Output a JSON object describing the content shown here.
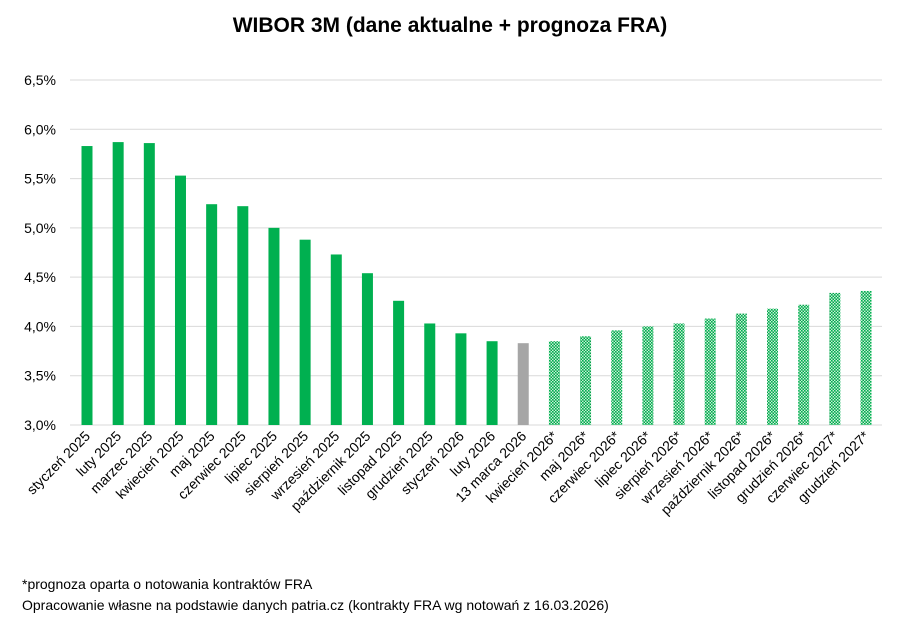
{
  "chart_data": {
    "type": "bar",
    "title": "WIBOR 3M (dane aktualne + prognoza FRA)",
    "xlabel": "",
    "ylabel": "",
    "ylim": [
      3.0,
      6.5
    ],
    "yticks": [
      "3,0%",
      "3,5%",
      "4,0%",
      "4,5%",
      "5,0%",
      "5,5%",
      "6,0%",
      "6,5%"
    ],
    "ytick_values": [
      3.0,
      3.5,
      4.0,
      4.5,
      5.0,
      5.5,
      6.0,
      6.5
    ],
    "grid": true,
    "categories": [
      "styczeń 2025",
      "luty 2025",
      "marzec 2025",
      "kwiecień 2025",
      "maj 2025",
      "czerwiec 2025",
      "lipiec 2025",
      "sierpień 2025",
      "wrzesień 2025",
      "październik 2025",
      "listopad 2025",
      "grudzień 2025",
      "styczeń 2026",
      "luty 2026",
      "13 marca 2026",
      "kwiecień 2026*",
      "maj 2026*",
      "czerwiec 2026*",
      "lipiec 2026*",
      "sierpień 2026*",
      "wrzesień 2026*",
      "październik 2026*",
      "listopad 2026*",
      "grudzień 2026*",
      "czerwiec 2027*",
      "grudzień 2027*"
    ],
    "values": [
      5.83,
      5.87,
      5.86,
      5.53,
      5.24,
      5.22,
      5.0,
      4.88,
      4.73,
      4.54,
      4.26,
      4.03,
      3.93,
      3.85,
      3.83,
      3.85,
      3.9,
      3.96,
      4.0,
      4.03,
      4.08,
      4.13,
      4.18,
      4.22,
      4.34,
      4.36
    ],
    "kinds": [
      "actual",
      "actual",
      "actual",
      "actual",
      "actual",
      "actual",
      "actual",
      "actual",
      "actual",
      "actual",
      "actual",
      "actual",
      "actual",
      "actual",
      "current",
      "forecast",
      "forecast",
      "forecast",
      "forecast",
      "forecast",
      "forecast",
      "forecast",
      "forecast",
      "forecast",
      "forecast",
      "forecast"
    ],
    "colors": {
      "actual": "#00b050",
      "current": "#a6a6a6",
      "forecast": "#00b050",
      "grid": "#d9d9d9"
    }
  },
  "footnotes": {
    "line1": "*prognoza oparta o notowania kontraktów FRA",
    "line2": "Opracowanie własne na podstawie danych patria.cz (kontrakty FRA wg notowań z 16.03.2026)"
  }
}
